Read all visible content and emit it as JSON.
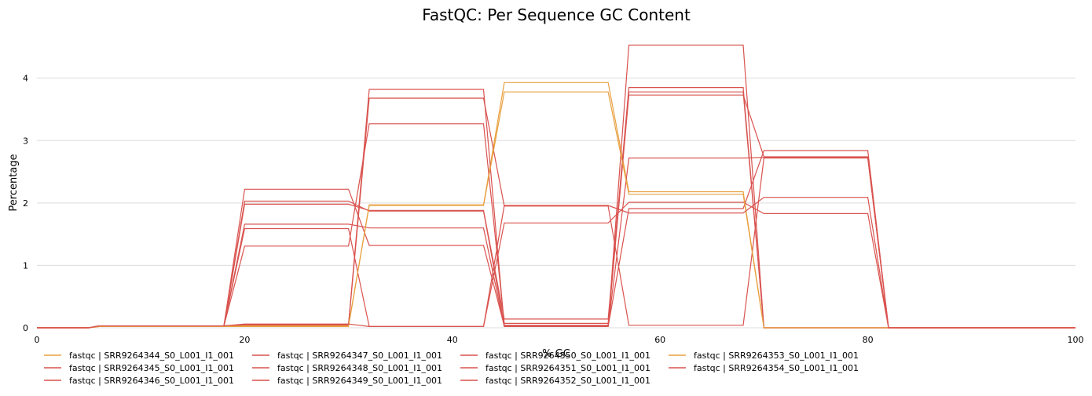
{
  "chart_data": {
    "type": "line",
    "title": "FastQC: Per Sequence GC Content",
    "xlabel": "% GC",
    "ylabel": "Percentage",
    "xlim": [
      0,
      100
    ],
    "ylim": [
      0,
      4.75
    ],
    "xticks": [
      0,
      20,
      40,
      60,
      80,
      100
    ],
    "yticks": [
      0,
      1,
      2,
      3,
      4
    ],
    "grid": "horizontal",
    "legend_position": "bottom",
    "x": [
      0,
      5,
      6,
      18,
      20,
      30,
      32,
      43,
      45,
      55,
      57,
      68,
      70,
      80,
      82,
      94,
      96,
      100
    ],
    "series": [
      {
        "name": "fastqc | SRR9264344_S0_L001_I1_001",
        "color": "#e8a040",
        "values": [
          0,
          0,
          0.02,
          0.02,
          0.02,
          0.02,
          1.97,
          1.97,
          3.93,
          3.93,
          2.18,
          2.18,
          0,
          0,
          0,
          0,
          0,
          0
        ]
      },
      {
        "name": "fastqc | SRR9264345_S0_L001_I1_001",
        "color": "#d9534f",
        "values": [
          0,
          0,
          0.03,
          0.03,
          2.03,
          2.03,
          1.87,
          1.87,
          0.04,
          0.04,
          3.78,
          3.78,
          0,
          0,
          0,
          0,
          0,
          0
        ]
      },
      {
        "name": "fastqc | SRR9264346_S0_L001_I1_001",
        "color": "#d9534f",
        "values": [
          0,
          0,
          0.03,
          0.03,
          1.31,
          1.31,
          3.27,
          3.27,
          0.07,
          0.07,
          3.73,
          3.73,
          2.74,
          2.74,
          0,
          0,
          0,
          0
        ]
      },
      {
        "name": "fastqc | SRR9264347_S0_L001_I1_001",
        "color": "#d9534f",
        "values": [
          0,
          0,
          0.03,
          0.03,
          2.22,
          2.22,
          1.32,
          1.32,
          0.03,
          0.03,
          4.53,
          4.53,
          0,
          0,
          0,
          0,
          0,
          0
        ]
      },
      {
        "name": "fastqc | SRR9264348_S0_L001_I1_001",
        "color": "#d9534f",
        "values": [
          0,
          0,
          0.03,
          0.03,
          1.66,
          1.66,
          1.6,
          1.6,
          0.02,
          0.02,
          2.72,
          2.72,
          2.73,
          2.73,
          0,
          0,
          0,
          0
        ]
      },
      {
        "name": "fastqc | SRR9264349_S0_L001_I1_001",
        "color": "#d9534f",
        "values": [
          0,
          0,
          0.03,
          0.03,
          0.05,
          0.05,
          3.82,
          3.82,
          0.02,
          0.02,
          1.91,
          1.91,
          2.84,
          2.84,
          0,
          0,
          0,
          0
        ]
      },
      {
        "name": "fastqc | SRR9264350_S0_L001_I1_001",
        "color": "#d9534f",
        "values": [
          0,
          0,
          0.03,
          0.03,
          1.98,
          1.98,
          1.88,
          1.88,
          0.14,
          0.14,
          3.85,
          3.85,
          0,
          0,
          0,
          0,
          0,
          0
        ]
      },
      {
        "name": "fastqc | SRR9264351_S0_L001_I1_001",
        "color": "#d9534f",
        "values": [
          0,
          0,
          0.03,
          0.03,
          0.04,
          0.04,
          3.68,
          3.68,
          1.95,
          1.95,
          0.04,
          0.04,
          2.72,
          2.72,
          0,
          0,
          0,
          0
        ]
      },
      {
        "name": "fastqc | SRR9264352_S0_L001_I1_001",
        "color": "#d9534f",
        "values": [
          0,
          0,
          0.03,
          0.03,
          1.59,
          1.59,
          0.02,
          0.02,
          1.68,
          1.68,
          2.01,
          2.01,
          1.83,
          1.83,
          0,
          0,
          0,
          0
        ]
      },
      {
        "name": "fastqc | SRR9264353_S0_L001_I1_001",
        "color": "#e8a040",
        "values": [
          0,
          0,
          0.02,
          0.02,
          0.03,
          0.03,
          1.96,
          1.96,
          3.78,
          3.78,
          2.14,
          2.14,
          0,
          0,
          0,
          0,
          0,
          0
        ]
      },
      {
        "name": "fastqc | SRR9264354_S0_L001_I1_001",
        "color": "#d9534f",
        "values": [
          0,
          0,
          0.03,
          0.03,
          0.06,
          0.06,
          0.02,
          0.02,
          1.96,
          1.96,
          1.84,
          1.84,
          2.09,
          2.09,
          0,
          0,
          0,
          0
        ]
      }
    ]
  }
}
